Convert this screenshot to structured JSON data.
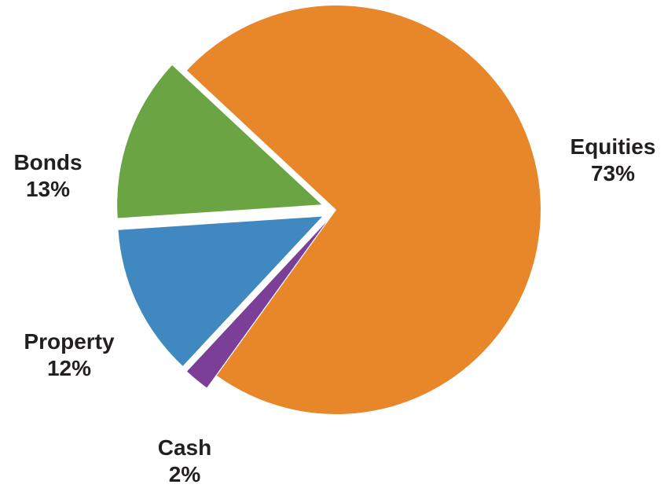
{
  "chart_data": {
    "type": "pie",
    "slices": [
      {
        "name": "Equities",
        "value": 73,
        "label": "73%",
        "color": "#e8862a"
      },
      {
        "name": "Cash",
        "value": 2,
        "label": "2%",
        "color": "#7b3f98"
      },
      {
        "name": "Property",
        "value": 12,
        "label": "12%",
        "color": "#3f88c0"
      },
      {
        "name": "Bonds",
        "value": 13,
        "label": "13%",
        "color": "#6aa443"
      }
    ],
    "exploded": true,
    "legend": "none"
  }
}
